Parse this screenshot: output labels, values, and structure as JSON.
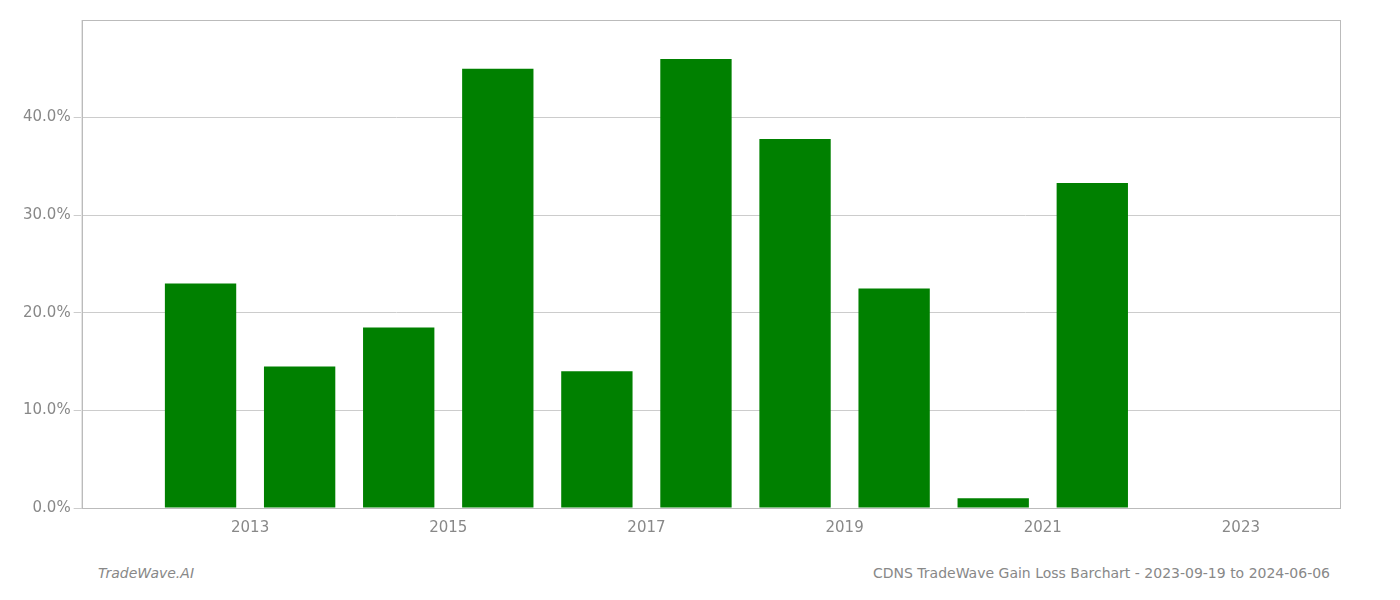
{
  "chart_data": {
    "type": "bar",
    "x": [
      2012,
      2013,
      2014,
      2015,
      2016,
      2017,
      2018,
      2019,
      2020,
      2021,
      2022
    ],
    "values": [
      0.23,
      0.145,
      0.185,
      0.45,
      0.14,
      0.46,
      0.378,
      0.225,
      0.01,
      0.333,
      0.0
    ],
    "color": "#008000",
    "xlim": [
      2010.8,
      2023.5
    ],
    "xticks": [
      {
        "value": 2012.5,
        "label": "2013"
      },
      {
        "value": 2014.5,
        "label": "2015"
      },
      {
        "value": 2016.5,
        "label": "2017"
      },
      {
        "value": 2018.5,
        "label": "2019"
      },
      {
        "value": 2020.5,
        "label": "2021"
      },
      {
        "value": 2022.5,
        "label": "2023"
      }
    ],
    "ylim": [
      0,
      0.5
    ],
    "yticks": [
      {
        "value": 0.0,
        "label": "0.0%"
      },
      {
        "value": 0.1,
        "label": "10.0%"
      },
      {
        "value": 0.2,
        "label": "20.0%"
      },
      {
        "value": 0.3,
        "label": "30.0%"
      },
      {
        "value": 0.4,
        "label": "40.0%"
      }
    ],
    "grid": "y",
    "annotations": [
      "TradeWave.AI",
      "CDNS TradeWave Gain Loss Barchart - 2023-09-19 to 2024-06-06"
    ]
  }
}
